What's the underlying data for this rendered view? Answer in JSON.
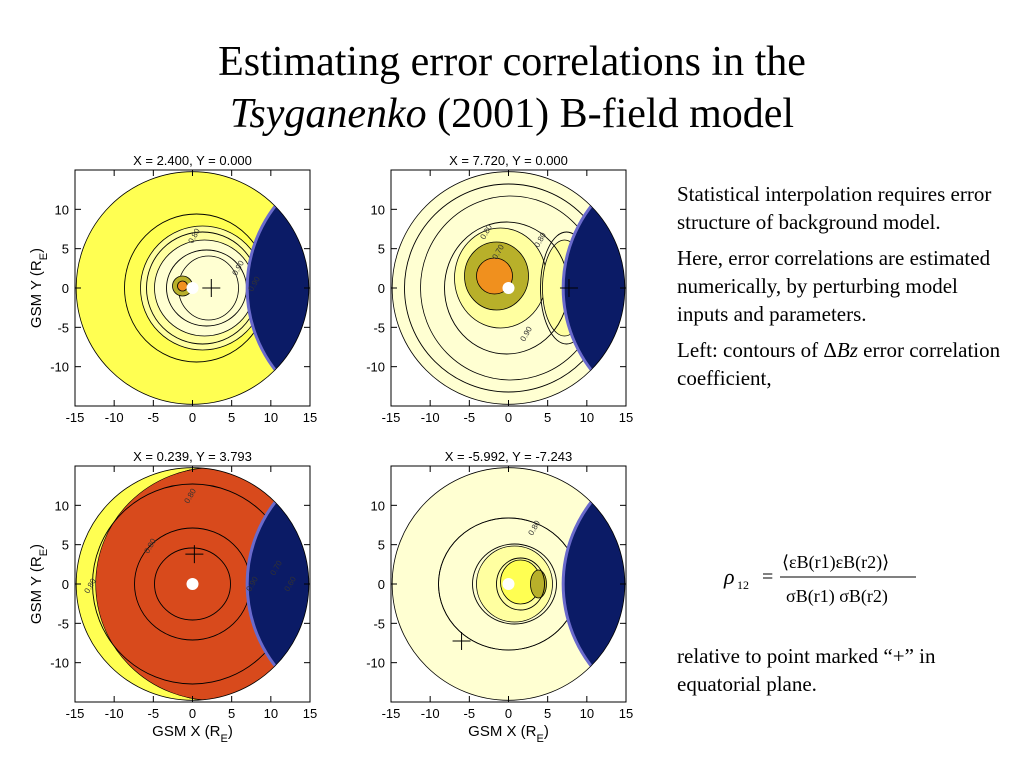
{
  "title": {
    "line1": "Estimating error correlations in the",
    "line2_italic": "Tsyganenko",
    "line2_rest": " (2001) B-field model"
  },
  "panels": [
    {
      "label": "X =   2.400, Y =   0.000",
      "plus_x": 2.4,
      "plus_y": 0.0
    },
    {
      "label": "X =   7.720, Y =   0.000",
      "plus_x": 7.72,
      "plus_y": 0.0
    },
    {
      "label": "X =   0.239, Y =   3.793",
      "plus_x": 0.239,
      "plus_y": 3.793
    },
    {
      "label": "X =  -5.992, Y =  -7.243",
      "plus_x": -5.992,
      "plus_y": -7.243
    }
  ],
  "axes": {
    "x_ticks": [
      "-15",
      "-10",
      "-5",
      "0",
      "5",
      "10",
      "15"
    ],
    "y_ticks": [
      "10",
      "5",
      "0",
      "-5",
      "-10"
    ],
    "xlabel_main": "GSM X (R",
    "xlabel_sub": "E",
    "xlabel_close": ")",
    "ylabel_main": "GSM Y (R",
    "ylabel_sub": "E",
    "ylabel_close": ")"
  },
  "contour_labels": {
    "p1": [
      "0.80",
      "0.90",
      "0.90"
    ],
    "p2": [
      "0.80",
      "0.70",
      "0.80",
      "0.90"
    ],
    "p3": [
      "0.80",
      "0.80",
      "0.80",
      "0.90",
      "0.70",
      "0.60"
    ],
    "p4": [
      "0.80"
    ]
  },
  "text": {
    "p1": "Statistical interpolation requires error structure of background model.",
    "p2": "Here, error correlations are estimated numerically, by perturbing model inputs and parameters.",
    "p3_pre": "Left: contours of ",
    "p3_delta": "Δ",
    "p3_bz": "Bz",
    "p3_post": " error correlation coefficient,",
    "p4": "relative to point marked “+” in equatorial plane."
  },
  "formula": {
    "rho": "ρ",
    "rho_sub": "12",
    "equals": "=",
    "numerator": "⟨εB(r1)εB(r2)⟩",
    "denominator": "σB(r1) σB(r2)"
  },
  "colors": {
    "yellow": "#ffff52",
    "pale": "#ffffd2",
    "light": "#ffffa0",
    "olive": "#b8b02a",
    "orange": "#f0901e",
    "red": "#d84a1c",
    "navy": "#0b1b66"
  }
}
